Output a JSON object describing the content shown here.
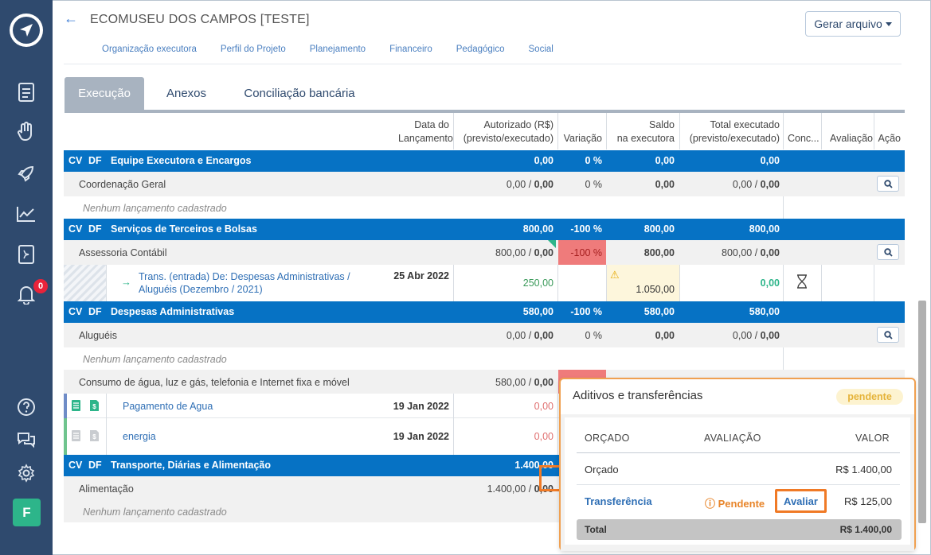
{
  "header": {
    "title": "ECOMUSEU DOS CAMPOS [TESTE]",
    "generate_label": "Gerar arquivo",
    "subnav": [
      "Organização executora",
      "Perfil do Projeto",
      "Planejamento",
      "Financeiro",
      "Pedagógico",
      "Social"
    ]
  },
  "sidebar": {
    "notification_count": "0",
    "avatar_letter": "F",
    "icons": [
      "logo-icon",
      "document-icon",
      "hand-icon",
      "rocket-icon",
      "chart-icon",
      "book-icon",
      "bell-icon",
      "help-icon",
      "chat-icon",
      "gear-icon"
    ]
  },
  "tabs": [
    "Execução",
    "Anexos",
    "Conciliação bancária"
  ],
  "columns": {
    "date": [
      "Data do",
      "Lançamento"
    ],
    "authorized": [
      "Autorizado (R$)",
      "(previsto/executado)"
    ],
    "variation": "Variação",
    "balance": [
      "Saldo",
      "na executora"
    ],
    "total": [
      "Total executado",
      "(previsto/executado)"
    ],
    "conc": "Conc...",
    "evaluation": "Avaliação",
    "action": "Ação"
  },
  "groups": [
    {
      "cv": "CV",
      "df": "DF",
      "name": "Equipe Executora e Encargos",
      "authorized": "0,00",
      "variation": "0 %",
      "balance": "0,00",
      "total": "0,00",
      "sub": {
        "name": "Coordenação Geral",
        "auth_a": "0,00 / ",
        "auth_b": "0,00",
        "variation": "0 %",
        "balance": "0,00",
        "total_a": "0,00 / ",
        "total_b": "0,00"
      },
      "none": "Nenhum lançamento cadastrado"
    },
    {
      "cv": "CV",
      "df": "DF",
      "name": "Serviços de Terceiros e Bolsas",
      "authorized": "800,00",
      "variation": "-100 %",
      "balance": "800,00",
      "total": "800,00",
      "sub": {
        "name": "Assessoria Contábil",
        "auth_a": "800,00 / ",
        "auth_b": "0,00",
        "variation": "-100 %",
        "balance": "800,00",
        "total_a": "800,00 / ",
        "total_b": "0,00"
      },
      "transfer": {
        "line1": "Trans. (entrada)    De: Despesas Administrativas /",
        "line2": "Aluguéis (Dezembro / 2021)",
        "date": "25 Abr 2022",
        "value": "250,00",
        "balance": "1.050,00",
        "total": "0,00"
      }
    },
    {
      "cv": "CV",
      "df": "DF",
      "name": "Despesas Administrativas",
      "authorized": "580,00",
      "variation": "-100 %",
      "balance": "580,00",
      "total": "580,00",
      "sub": {
        "name": "Aluguéis",
        "auth_a": "0,00 / ",
        "auth_b": "0,00",
        "variation": "0 %",
        "balance": "0,00",
        "total_a": "0,00 / ",
        "total_b": "0,00"
      },
      "none": "Nenhum lançamento cadastrado",
      "sub2": {
        "name": "Consumo de água, luz e gás, telefonia e Internet fixa e móvel",
        "auth_a": "580,00 / ",
        "auth_b": "0,00"
      },
      "items": [
        {
          "name": "Pagamento de Agua",
          "date": "19 Jan 2022",
          "value": "0,00"
        },
        {
          "name": "energia",
          "date": "19 Jan 2022",
          "value": "0,00"
        }
      ]
    },
    {
      "cv": "CV",
      "df": "DF",
      "name": "Transporte, Diárias e Alimentação",
      "authorized": "1.400,00",
      "sub": {
        "name": "Alimentação",
        "auth_a": "1.400,00 / ",
        "auth_b": "0,00"
      },
      "none": "Nenhum lançamento cadastrado"
    }
  ],
  "popup": {
    "title": "Aditivos e transferências",
    "status": "pendente",
    "headers": [
      "ORÇADO",
      "AVALIAÇÃO",
      "VALOR"
    ],
    "rows": [
      {
        "label": "Orçado",
        "value": "R$ 1.400,00"
      },
      {
        "label": "Transferência",
        "status": "Pendente",
        "action": "Avaliar",
        "value": "R$ 125,00"
      }
    ],
    "total_label": "Total",
    "total_value": "R$ 1.400,00"
  }
}
